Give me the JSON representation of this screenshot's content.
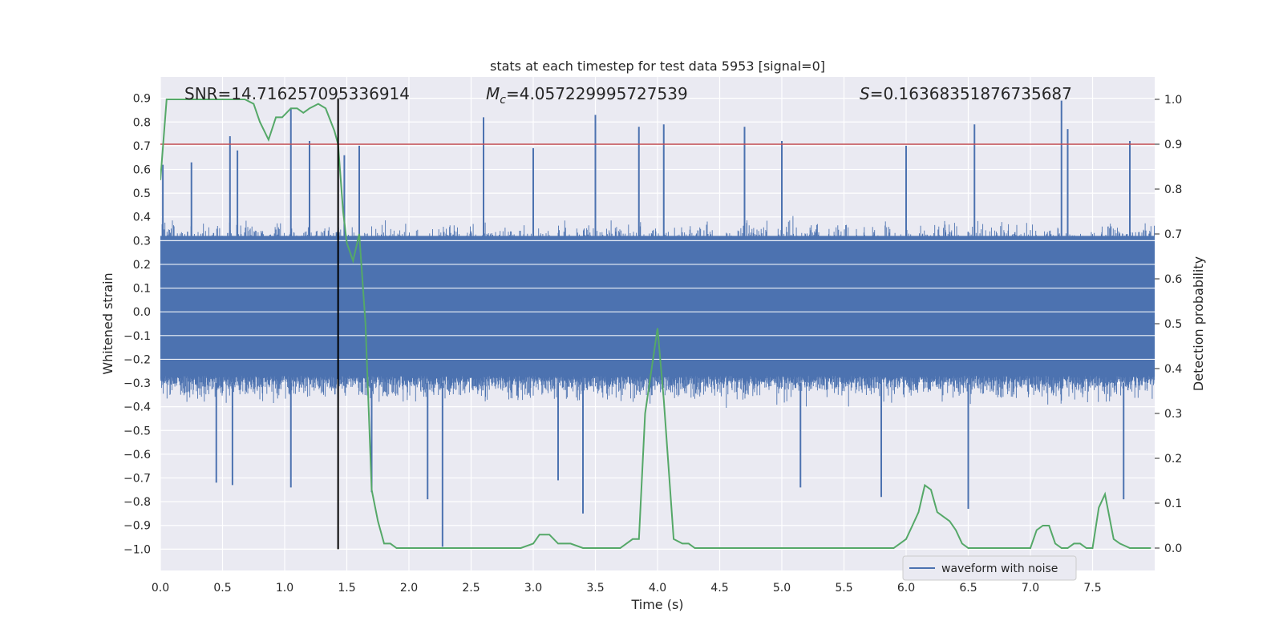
{
  "chart_data": {
    "type": "line",
    "title": "stats at each timestep for test data 5953 [signal=0]",
    "xlabel": "Time (s)",
    "ylabel_left": "Whitened strain",
    "ylabel_right": "Detection probability",
    "xlim": [
      0.0,
      8.0
    ],
    "ylim_left": [
      -1.09,
      0.99
    ],
    "ylim_right": [
      -0.05,
      1.05
    ],
    "xticks": [
      0.0,
      0.5,
      1.0,
      1.5,
      2.0,
      2.5,
      3.0,
      3.5,
      4.0,
      4.5,
      5.0,
      5.5,
      6.0,
      6.5,
      7.0,
      7.5
    ],
    "xtick_labels": [
      "0.0",
      "0.5",
      "1.0",
      "1.5",
      "2.0",
      "2.5",
      "3.0",
      "3.5",
      "4.0",
      "4.5",
      "5.0",
      "5.5",
      "6.0",
      "6.5",
      "7.0",
      "7.5"
    ],
    "yticks_left": [
      0.9,
      0.8,
      0.7,
      0.6,
      0.5,
      0.4,
      0.3,
      0.2,
      0.1,
      0.0,
      -0.1,
      -0.2,
      -0.3,
      -0.4,
      -0.5,
      -0.6,
      -0.7,
      -0.8,
      -0.9,
      -1.0
    ],
    "ytick_labels_left": [
      "0.9",
      "0.8",
      "0.7",
      "0.6",
      "0.5",
      "0.4",
      "0.3",
      "0.2",
      "0.1",
      "0.0",
      "−0.1",
      "−0.2",
      "−0.3",
      "−0.4",
      "−0.5",
      "−0.6",
      "−0.7",
      "−0.8",
      "−0.9",
      "−1.0"
    ],
    "yticks_right": [
      1.0,
      0.9,
      0.8,
      0.7,
      0.6,
      0.5,
      0.4,
      0.3,
      0.2,
      0.1,
      0.0
    ],
    "ytick_labels_right": [
      "1.0",
      "0.9",
      "0.8",
      "0.7",
      "0.6",
      "0.5",
      "0.4",
      "0.3",
      "0.2",
      "0.1",
      "0.0"
    ],
    "annotations": {
      "snr": "SNR=14.716257095336914",
      "mc_symbol": "M",
      "mc_sub": "c",
      "mc_value": "=4.057229995727539",
      "s_symbol": "S",
      "s_value": "=0.16368351876735687"
    },
    "threshold_line": {
      "y_right": 0.9,
      "color": "#c44e52"
    },
    "vertical_marker": {
      "x": 1.43,
      "color": "#000000"
    },
    "legend": {
      "label": "waveform with noise",
      "placement": "lower right"
    },
    "series": [
      {
        "name": "waveform with noise",
        "axis": "left",
        "color": "#4c72b0",
        "style": "dense noisy waveform",
        "core_range": [
          -0.25,
          0.32
        ],
        "typical_range": [
          -0.45,
          0.45
        ],
        "spikes": [
          {
            "x": 0.02,
            "y": 0.62
          },
          {
            "x": 0.25,
            "y": 0.63
          },
          {
            "x": 0.56,
            "y": 0.74
          },
          {
            "x": 0.62,
            "y": 0.68
          },
          {
            "x": 1.05,
            "y": 0.86
          },
          {
            "x": 1.2,
            "y": 0.72
          },
          {
            "x": 1.48,
            "y": 0.66
          },
          {
            "x": 1.6,
            "y": 0.7
          },
          {
            "x": 2.6,
            "y": 0.82
          },
          {
            "x": 3.0,
            "y": 0.69
          },
          {
            "x": 3.5,
            "y": 0.83
          },
          {
            "x": 3.85,
            "y": 0.78
          },
          {
            "x": 4.05,
            "y": 0.79
          },
          {
            "x": 4.7,
            "y": 0.78
          },
          {
            "x": 5.0,
            "y": 0.72
          },
          {
            "x": 6.55,
            "y": 0.79
          },
          {
            "x": 6.0,
            "y": 0.7
          },
          {
            "x": 7.25,
            "y": 0.89
          },
          {
            "x": 7.3,
            "y": 0.77
          },
          {
            "x": 7.8,
            "y": 0.72
          },
          {
            "x": 0.45,
            "y": -0.72
          },
          {
            "x": 0.58,
            "y": -0.73
          },
          {
            "x": 1.05,
            "y": -0.74
          },
          {
            "x": 1.7,
            "y": -0.76
          },
          {
            "x": 2.15,
            "y": -0.79
          },
          {
            "x": 2.27,
            "y": -0.99
          },
          {
            "x": 3.2,
            "y": -0.71
          },
          {
            "x": 3.4,
            "y": -0.85
          },
          {
            "x": 5.15,
            "y": -0.74
          },
          {
            "x": 5.8,
            "y": -0.78
          },
          {
            "x": 6.5,
            "y": -0.83
          },
          {
            "x": 7.75,
            "y": -0.79
          }
        ]
      },
      {
        "name": "",
        "axis": "right",
        "color": "#55a868",
        "x": [
          0.0,
          0.05,
          0.1,
          0.2,
          0.3,
          0.4,
          0.5,
          0.6,
          0.68,
          0.75,
          0.8,
          0.87,
          0.93,
          0.98,
          1.05,
          1.1,
          1.15,
          1.2,
          1.27,
          1.33,
          1.4,
          1.43,
          1.47,
          1.5,
          1.55,
          1.6,
          1.65,
          1.7,
          1.75,
          1.8,
          1.85,
          1.9,
          2.0,
          2.1,
          2.2,
          2.3,
          2.4,
          2.5,
          2.6,
          2.7,
          2.8,
          2.9,
          3.0,
          3.05,
          3.13,
          3.2,
          3.25,
          3.3,
          3.4,
          3.5,
          3.6,
          3.7,
          3.8,
          3.85,
          3.9,
          4.0,
          4.05,
          4.13,
          4.2,
          4.25,
          4.3,
          4.4,
          4.5,
          4.6,
          4.7,
          4.8,
          4.9,
          5.0,
          5.1,
          5.2,
          5.3,
          5.4,
          5.5,
          5.6,
          5.7,
          5.8,
          5.9,
          5.95,
          6.0,
          6.05,
          6.1,
          6.15,
          6.2,
          6.25,
          6.3,
          6.35,
          6.4,
          6.45,
          6.5,
          6.6,
          6.7,
          6.8,
          6.9,
          7.0,
          7.05,
          7.1,
          7.15,
          7.2,
          7.25,
          7.3,
          7.35,
          7.4,
          7.45,
          7.5,
          7.55,
          7.6,
          7.67,
          7.72,
          7.8,
          7.9,
          7.97
        ],
        "y": [
          0.82,
          1.0,
          1.0,
          1.0,
          1.0,
          1.0,
          1.0,
          1.0,
          1.0,
          0.99,
          0.95,
          0.91,
          0.96,
          0.96,
          0.98,
          0.98,
          0.97,
          0.98,
          0.99,
          0.98,
          0.93,
          0.9,
          0.75,
          0.68,
          0.64,
          0.7,
          0.5,
          0.13,
          0.06,
          0.01,
          0.01,
          0.0,
          0.0,
          0.0,
          0.0,
          0.0,
          0.0,
          0.0,
          0.0,
          0.0,
          0.0,
          0.0,
          0.01,
          0.03,
          0.03,
          0.01,
          0.01,
          0.01,
          0.0,
          0.0,
          0.0,
          0.0,
          0.02,
          0.02,
          0.3,
          0.49,
          0.33,
          0.02,
          0.01,
          0.01,
          0.0,
          0.0,
          0.0,
          0.0,
          0.0,
          0.0,
          0.0,
          0.0,
          0.0,
          0.0,
          0.0,
          0.0,
          0.0,
          0.0,
          0.0,
          0.0,
          0.0,
          0.01,
          0.02,
          0.05,
          0.08,
          0.14,
          0.13,
          0.08,
          0.07,
          0.06,
          0.04,
          0.01,
          0.0,
          0.0,
          0.0,
          0.0,
          0.0,
          0.0,
          0.04,
          0.05,
          0.05,
          0.01,
          0.0,
          0.0,
          0.01,
          0.01,
          0.0,
          0.0,
          0.09,
          0.12,
          0.02,
          0.01,
          0.0,
          0.0,
          0.0
        ]
      }
    ]
  }
}
